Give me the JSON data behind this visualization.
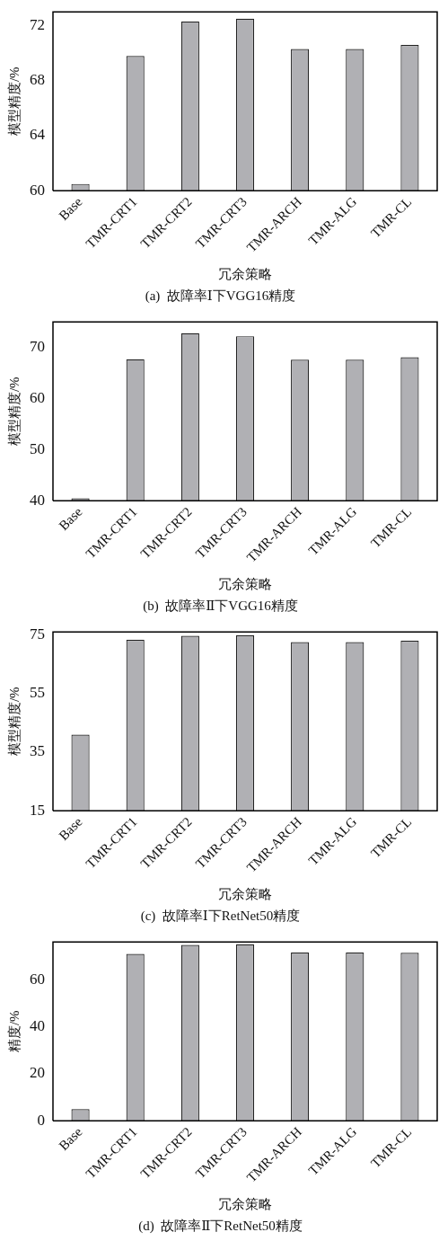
{
  "chart_data": [
    {
      "type": "bar",
      "title": "(a)  故障率Ⅰ下VGG16精度",
      "xlabel": "冗余策略",
      "ylabel": "模型精度/%",
      "categories": [
        "Base",
        "TMR-CRT1",
        "TMR-CRT2",
        "TMR-CRT3",
        "TMR-ARCH",
        "TMR-ALG",
        "TMR-CL"
      ],
      "values": [
        60.5,
        69.8,
        72.3,
        72.5,
        70.3,
        70.3,
        70.6
      ],
      "color": "#b0b0b4",
      "ylim": [
        60,
        73
      ],
      "yticks": [
        60,
        64,
        68,
        72
      ],
      "grid": false
    },
    {
      "type": "bar",
      "title": "(b)  故障率Ⅱ下VGG16精度",
      "xlabel": "冗余策略",
      "ylabel": "模型精度/%",
      "categories": [
        "Base",
        "TMR-CRT1",
        "TMR-CRT2",
        "TMR-CRT3",
        "TMR-ARCH",
        "TMR-ALG",
        "TMR-CL"
      ],
      "values": [
        40.5,
        67.7,
        72.8,
        72.2,
        67.6,
        67.6,
        68.1
      ],
      "color": "#b0b0b4",
      "ylim": [
        40,
        75
      ],
      "yticks": [
        40,
        50,
        60,
        70
      ],
      "grid": false
    },
    {
      "type": "bar",
      "title": "(c)  故障率Ⅰ下RetNet50精度",
      "xlabel": "冗余策略",
      "ylabel": "模型精度/%",
      "categories": [
        "Base",
        "TMR-CRT1",
        "TMR-CRT2",
        "TMR-CRT3",
        "TMR-ARCH",
        "TMR-ALG",
        "TMR-CL"
      ],
      "values": [
        41.0,
        73.3,
        74.7,
        74.8,
        72.5,
        72.5,
        73.0
      ],
      "color": "#b0b0b4",
      "ylim": [
        15,
        76
      ],
      "yticks": [
        15,
        35,
        55,
        75
      ],
      "grid": false
    },
    {
      "type": "bar",
      "title": "(d)  故障率Ⅱ下RetNet50精度",
      "xlabel": "冗余策略",
      "ylabel": "精度/%",
      "categories": [
        "Base",
        "TMR-CRT1",
        "TMR-CRT2",
        "TMR-CRT3",
        "TMR-ARCH",
        "TMR-ALG",
        "TMR-CL"
      ],
      "values": [
        5,
        70.9,
        74.7,
        75.0,
        71.5,
        71.5,
        71.4
      ],
      "color": "#b0b0b4",
      "ylim": [
        0,
        76
      ],
      "yticks": [
        0,
        20,
        40,
        60
      ],
      "grid": false
    }
  ]
}
